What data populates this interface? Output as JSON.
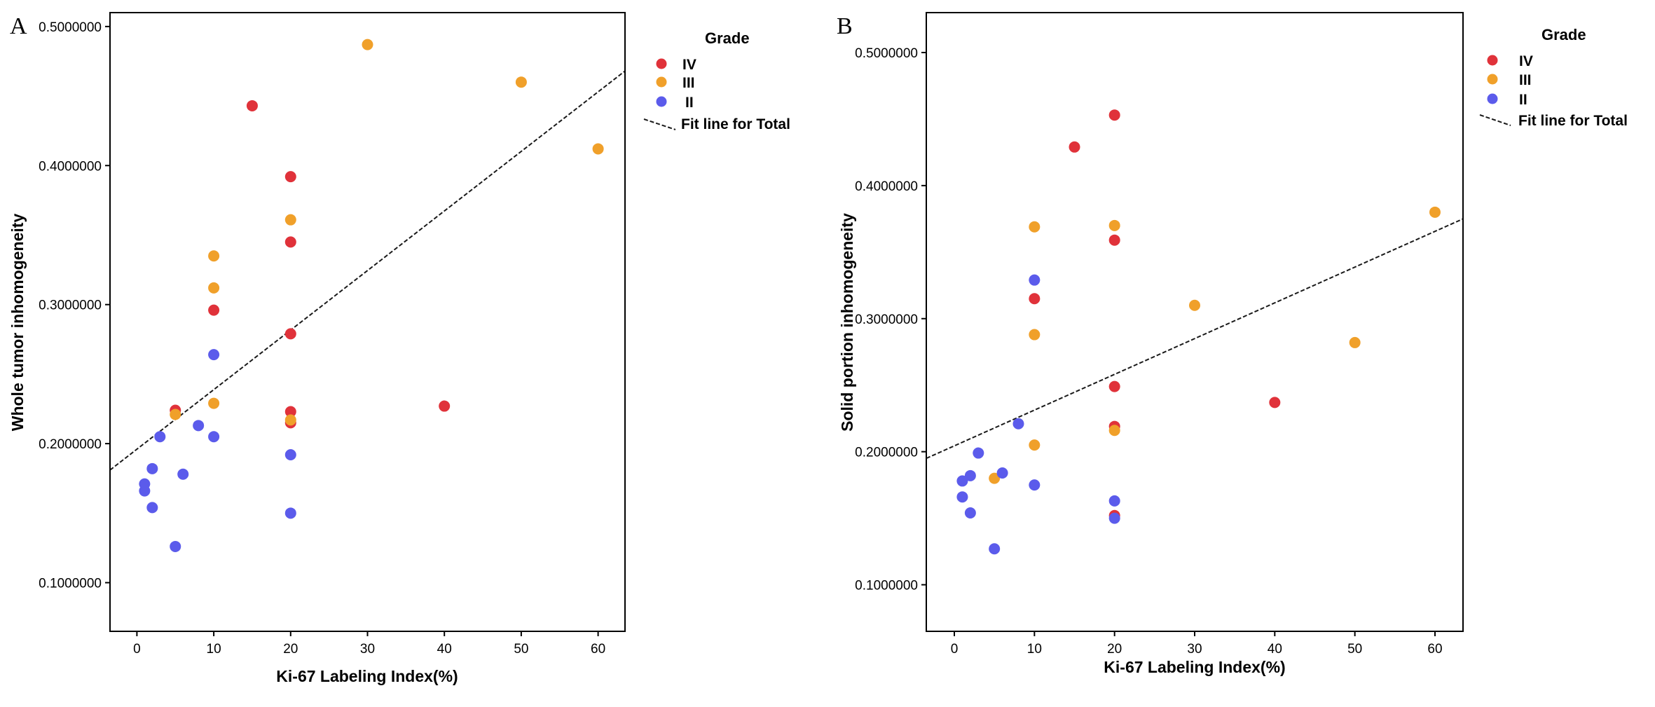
{
  "colors": {
    "IV": "#E0323A",
    "III": "#F0A02A",
    "II": "#5B5BEB",
    "fit": "#1a1a1a",
    "axis": "#000000"
  },
  "chart_data": [
    {
      "type": "scatter",
      "panel_label": "A",
      "title": "",
      "xlabel": "Ki-67 Labeling Index(%)",
      "ylabel": "Whole tumor inhomogeneity",
      "xlim": [
        -3.5,
        63.5
      ],
      "ylim": [
        0.065,
        0.51
      ],
      "xticks": [
        0,
        10,
        20,
        30,
        40,
        50,
        60
      ],
      "xtick_labels": [
        "0",
        "10",
        "20",
        "30",
        "40",
        "50",
        "60"
      ],
      "yticks": [
        0.1,
        0.2,
        0.3,
        0.4,
        0.5
      ],
      "ytick_labels": [
        "0.1000000",
        "0.2000000",
        "0.3000000",
        "0.4000000",
        "0.5000000"
      ],
      "legend": {
        "title": "Grade",
        "position": "right",
        "entries": [
          {
            "label": "IV",
            "key": "IV"
          },
          {
            "label": "III",
            "key": "III"
          },
          {
            "label": "II",
            "key": "II"
          }
        ],
        "fit_label": "Fit line for Total"
      },
      "series": [
        {
          "name": "IV",
          "points": [
            [
              5,
              0.224
            ],
            [
              10,
              0.296
            ],
            [
              15,
              0.443
            ],
            [
              20,
              0.392
            ],
            [
              20,
              0.345
            ],
            [
              20,
              0.279
            ],
            [
              20,
              0.223
            ],
            [
              20,
              0.215
            ],
            [
              40,
              0.227
            ]
          ]
        },
        {
          "name": "III",
          "points": [
            [
              5,
              0.221
            ],
            [
              10,
              0.335
            ],
            [
              10,
              0.312
            ],
            [
              10,
              0.229
            ],
            [
              20,
              0.361
            ],
            [
              20,
              0.217
            ],
            [
              30,
              0.487
            ],
            [
              50,
              0.46
            ],
            [
              60,
              0.412
            ]
          ]
        },
        {
          "name": "II",
          "points": [
            [
              1,
              0.171
            ],
            [
              1,
              0.166
            ],
            [
              2,
              0.182
            ],
            [
              2,
              0.154
            ],
            [
              3,
              0.205
            ],
            [
              5,
              0.126
            ],
            [
              6,
              0.178
            ],
            [
              8,
              0.213
            ],
            [
              10,
              0.264
            ],
            [
              10,
              0.205
            ],
            [
              20,
              0.192
            ],
            [
              20,
              0.15
            ]
          ]
        }
      ],
      "fit_line": {
        "x1": -3.5,
        "y1": 0.181,
        "x2": 63.5,
        "y2": 0.468
      }
    },
    {
      "type": "scatter",
      "panel_label": "B",
      "title": "",
      "xlabel": "Ki-67 Labeling Index(%)",
      "ylabel": "Solid portion inhomogeneity",
      "xlim": [
        -3.5,
        63.5
      ],
      "ylim": [
        0.065,
        0.53
      ],
      "xticks": [
        0,
        10,
        20,
        30,
        40,
        50,
        60
      ],
      "xtick_labels": [
        "0",
        "10",
        "20",
        "30",
        "40",
        "50",
        "60"
      ],
      "yticks": [
        0.1,
        0.2,
        0.3,
        0.4,
        0.5
      ],
      "ytick_labels": [
        "0.1000000",
        "0.2000000",
        "0.3000000",
        "0.4000000",
        "0.5000000"
      ],
      "legend": {
        "title": "Grade",
        "position": "right",
        "entries": [
          {
            "label": "IV",
            "key": "IV"
          },
          {
            "label": "III",
            "key": "III"
          },
          {
            "label": "II",
            "key": "II"
          }
        ],
        "fit_label": "Fit line for Total"
      },
      "series": [
        {
          "name": "IV",
          "points": [
            [
              10,
              0.315
            ],
            [
              15,
              0.429
            ],
            [
              20,
              0.453
            ],
            [
              20,
              0.359
            ],
            [
              20,
              0.249
            ],
            [
              20,
              0.219
            ],
            [
              20,
              0.152
            ],
            [
              40,
              0.237
            ]
          ]
        },
        {
          "name": "III",
          "points": [
            [
              5,
              0.18
            ],
            [
              10,
              0.369
            ],
            [
              10,
              0.288
            ],
            [
              10,
              0.205
            ],
            [
              20,
              0.37
            ],
            [
              20,
              0.216
            ],
            [
              30,
              0.31
            ],
            [
              50,
              0.282
            ],
            [
              60,
              0.38
            ]
          ]
        },
        {
          "name": "II",
          "points": [
            [
              1,
              0.178
            ],
            [
              1,
              0.166
            ],
            [
              2,
              0.182
            ],
            [
              2,
              0.154
            ],
            [
              3,
              0.199
            ],
            [
              5,
              0.127
            ],
            [
              6,
              0.184
            ],
            [
              8,
              0.221
            ],
            [
              10,
              0.329
            ],
            [
              10,
              0.175
            ],
            [
              20,
              0.163
            ],
            [
              20,
              0.15
            ]
          ]
        }
      ],
      "fit_line": {
        "x1": -3.5,
        "y1": 0.195,
        "x2": 63.5,
        "y2": 0.375
      }
    }
  ]
}
